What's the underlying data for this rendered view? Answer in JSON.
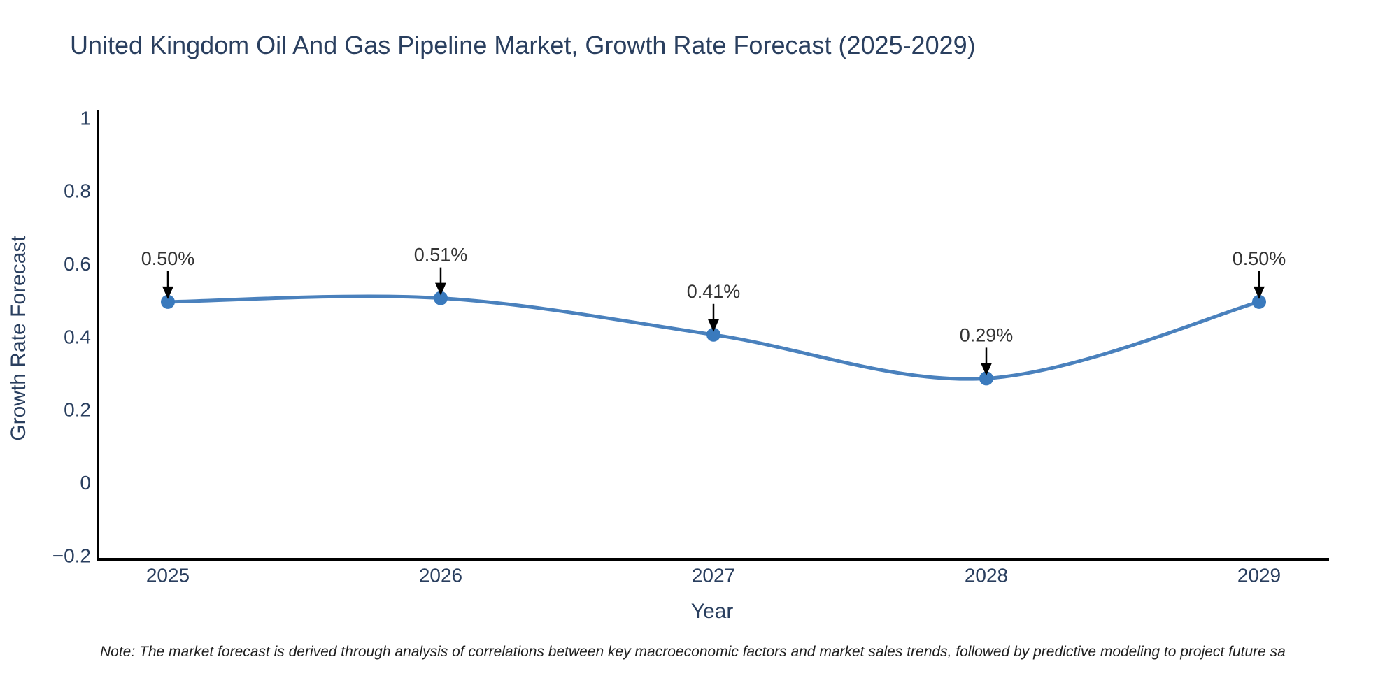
{
  "page": {
    "background": "#ffffff"
  },
  "chart_data": {
    "type": "line",
    "title": "United Kingdom Oil And Gas Pipeline Market, Growth Rate Forecast (2025-2029)",
    "x": [
      2025,
      2026,
      2027,
      2028,
      2029
    ],
    "series": [
      {
        "name": "Growth Rate Forecast",
        "values": [
          0.5,
          0.51,
          0.41,
          0.29,
          0.5
        ]
      }
    ],
    "point_labels": [
      "0.50%",
      "0.51%",
      "0.41%",
      "0.29%",
      "0.50%"
    ],
    "xlabel": "Year",
    "ylabel": "Growth Rate Forecast",
    "ylim": [
      -0.2,
      1
    ],
    "yticks": [
      1,
      0.8,
      0.6,
      0.4,
      0.2,
      0,
      -0.2
    ],
    "ytick_labels": [
      "1",
      "0.8",
      "0.6",
      "0.4",
      "0.2",
      "0",
      "−0.2"
    ],
    "xtick_labels": [
      "2025",
      "2026",
      "2027",
      "2028",
      "2029"
    ],
    "line_shape": "spline",
    "grid": false,
    "legend": "none",
    "colors": {
      "line": "#4a81bd",
      "marker": "#3a7abd",
      "axis": "#000000",
      "text": "#2a3f5f",
      "annotation_text": "#333333",
      "arrow": "#000000"
    }
  },
  "note": {
    "text": "Note: The market forecast is derived through analysis of correlations between key macroeconomic factors and market sales trends, followed by predictive modeling to project future sa"
  }
}
